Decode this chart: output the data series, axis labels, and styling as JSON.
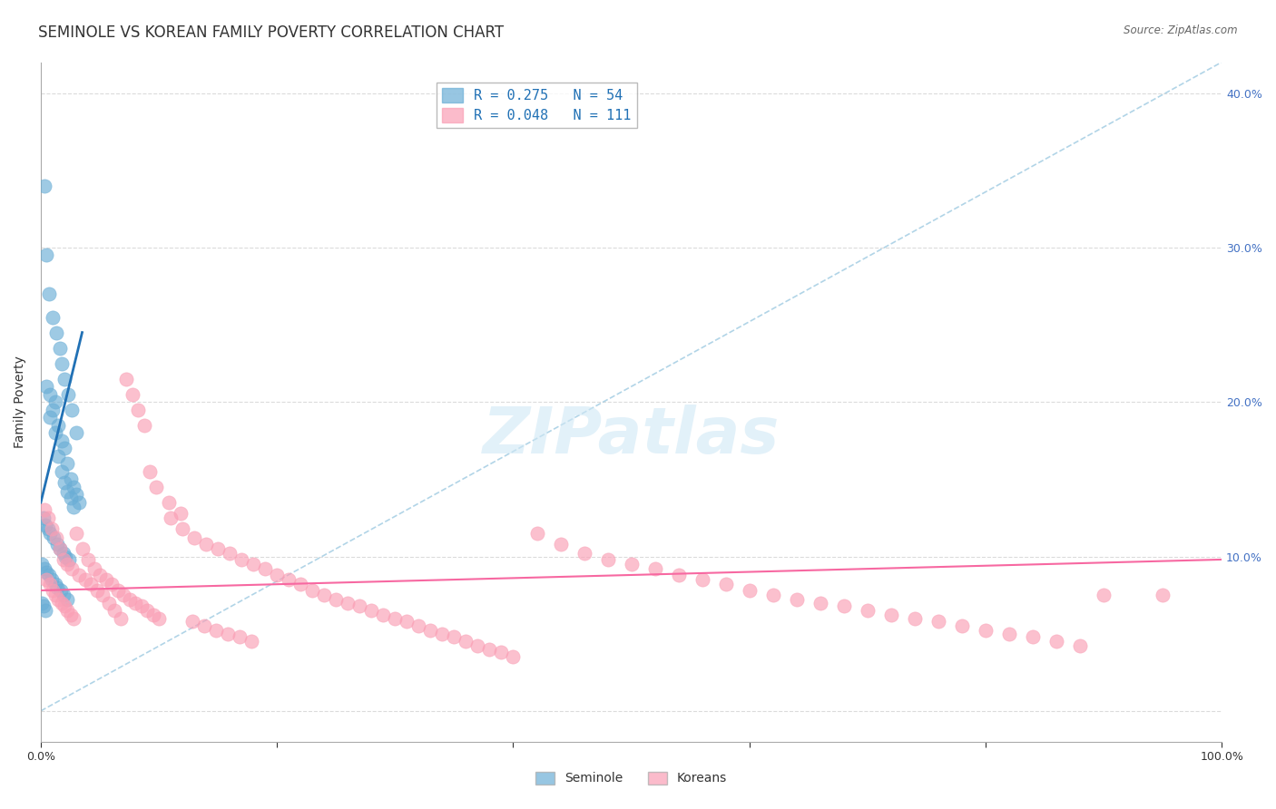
{
  "title": "SEMINOLE VS KOREAN FAMILY POVERTY CORRELATION CHART",
  "source": "Source: ZipAtlas.com",
  "ylabel": "Family Poverty",
  "xlim": [
    0.0,
    1.0
  ],
  "ylim": [
    -0.02,
    0.42
  ],
  "xticks": [
    0.0,
    0.2,
    0.4,
    0.6,
    0.8,
    1.0
  ],
  "xtick_labels": [
    "0.0%",
    "",
    "",
    "",
    "",
    "100.0%"
  ],
  "yticks": [
    0.0,
    0.1,
    0.2,
    0.3,
    0.4
  ],
  "ytick_labels_right": [
    "",
    "10.0%",
    "20.0%",
    "30.0%",
    "40.0%"
  ],
  "blue_color": "#6baed6",
  "pink_color": "#fa9fb5",
  "blue_line_color": "#2171b5",
  "pink_line_color": "#f768a1",
  "dashed_line_color": "#9ecae1",
  "grid_color": "#cccccc",
  "blue_R": 0.275,
  "blue_N": 54,
  "pink_R": 0.048,
  "pink_N": 111,
  "blue_scatter_x": [
    0.008,
    0.012,
    0.015,
    0.018,
    0.02,
    0.022,
    0.025,
    0.028,
    0.03,
    0.032,
    0.005,
    0.008,
    0.01,
    0.012,
    0.015,
    0.018,
    0.02,
    0.022,
    0.025,
    0.028,
    0.003,
    0.005,
    0.007,
    0.01,
    0.013,
    0.016,
    0.018,
    0.02,
    0.023,
    0.026,
    0.002,
    0.004,
    0.006,
    0.008,
    0.011,
    0.014,
    0.016,
    0.019,
    0.021,
    0.024,
    0.001,
    0.003,
    0.005,
    0.007,
    0.009,
    0.012,
    0.014,
    0.017,
    0.019,
    0.022,
    0.001,
    0.002,
    0.004,
    0.03
  ],
  "blue_scatter_y": [
    0.19,
    0.2,
    0.185,
    0.175,
    0.17,
    0.16,
    0.15,
    0.145,
    0.14,
    0.135,
    0.21,
    0.205,
    0.195,
    0.18,
    0.165,
    0.155,
    0.148,
    0.142,
    0.138,
    0.132,
    0.34,
    0.295,
    0.27,
    0.255,
    0.245,
    0.235,
    0.225,
    0.215,
    0.205,
    0.195,
    0.125,
    0.12,
    0.118,
    0.115,
    0.112,
    0.108,
    0.105,
    0.102,
    0.1,
    0.098,
    0.095,
    0.092,
    0.09,
    0.088,
    0.085,
    0.082,
    0.08,
    0.078,
    0.075,
    0.072,
    0.07,
    0.068,
    0.065,
    0.18
  ],
  "pink_scatter_x": [
    0.005,
    0.008,
    0.01,
    0.012,
    0.015,
    0.018,
    0.02,
    0.022,
    0.025,
    0.028,
    0.03,
    0.035,
    0.04,
    0.045,
    0.05,
    0.055,
    0.06,
    0.065,
    0.07,
    0.075,
    0.08,
    0.085,
    0.09,
    0.095,
    0.1,
    0.11,
    0.12,
    0.13,
    0.14,
    0.15,
    0.16,
    0.17,
    0.18,
    0.19,
    0.2,
    0.21,
    0.22,
    0.23,
    0.24,
    0.25,
    0.26,
    0.27,
    0.28,
    0.29,
    0.3,
    0.31,
    0.32,
    0.33,
    0.34,
    0.35,
    0.36,
    0.37,
    0.38,
    0.39,
    0.4,
    0.42,
    0.44,
    0.46,
    0.48,
    0.5,
    0.52,
    0.54,
    0.56,
    0.58,
    0.6,
    0.62,
    0.64,
    0.66,
    0.68,
    0.7,
    0.72,
    0.74,
    0.76,
    0.78,
    0.8,
    0.82,
    0.84,
    0.86,
    0.88,
    0.9,
    0.003,
    0.006,
    0.009,
    0.013,
    0.016,
    0.019,
    0.022,
    0.026,
    0.032,
    0.038,
    0.042,
    0.048,
    0.052,
    0.058,
    0.062,
    0.068,
    0.072,
    0.078,
    0.082,
    0.088,
    0.092,
    0.098,
    0.108,
    0.118,
    0.128,
    0.138,
    0.148,
    0.158,
    0.168,
    0.178,
    0.95
  ],
  "pink_scatter_y": [
    0.085,
    0.082,
    0.078,
    0.075,
    0.072,
    0.07,
    0.068,
    0.065,
    0.062,
    0.06,
    0.115,
    0.105,
    0.098,
    0.092,
    0.088,
    0.085,
    0.082,
    0.078,
    0.075,
    0.072,
    0.07,
    0.068,
    0.065,
    0.062,
    0.06,
    0.125,
    0.118,
    0.112,
    0.108,
    0.105,
    0.102,
    0.098,
    0.095,
    0.092,
    0.088,
    0.085,
    0.082,
    0.078,
    0.075,
    0.072,
    0.07,
    0.068,
    0.065,
    0.062,
    0.06,
    0.058,
    0.055,
    0.052,
    0.05,
    0.048,
    0.045,
    0.042,
    0.04,
    0.038,
    0.035,
    0.115,
    0.108,
    0.102,
    0.098,
    0.095,
    0.092,
    0.088,
    0.085,
    0.082,
    0.078,
    0.075,
    0.072,
    0.07,
    0.068,
    0.065,
    0.062,
    0.06,
    0.058,
    0.055,
    0.052,
    0.05,
    0.048,
    0.045,
    0.042,
    0.075,
    0.13,
    0.125,
    0.118,
    0.112,
    0.105,
    0.098,
    0.095,
    0.092,
    0.088,
    0.085,
    0.082,
    0.078,
    0.075,
    0.07,
    0.065,
    0.06,
    0.215,
    0.205,
    0.195,
    0.185,
    0.155,
    0.145,
    0.135,
    0.128,
    0.058,
    0.055,
    0.052,
    0.05,
    0.048,
    0.045,
    0.075
  ],
  "blue_line_x": [
    0.0,
    0.035
  ],
  "blue_line_y": [
    0.135,
    0.245
  ],
  "pink_line_x": [
    0.0,
    1.0
  ],
  "pink_line_y": [
    0.078,
    0.098
  ],
  "dashed_line_x": [
    0.0,
    1.0
  ],
  "dashed_line_y": [
    0.0,
    0.42
  ],
  "legend_blue_label": "Seminole",
  "legend_pink_label": "Koreans",
  "watermark": "ZIPatlas",
  "title_fontsize": 12,
  "label_fontsize": 10,
  "tick_fontsize": 9
}
